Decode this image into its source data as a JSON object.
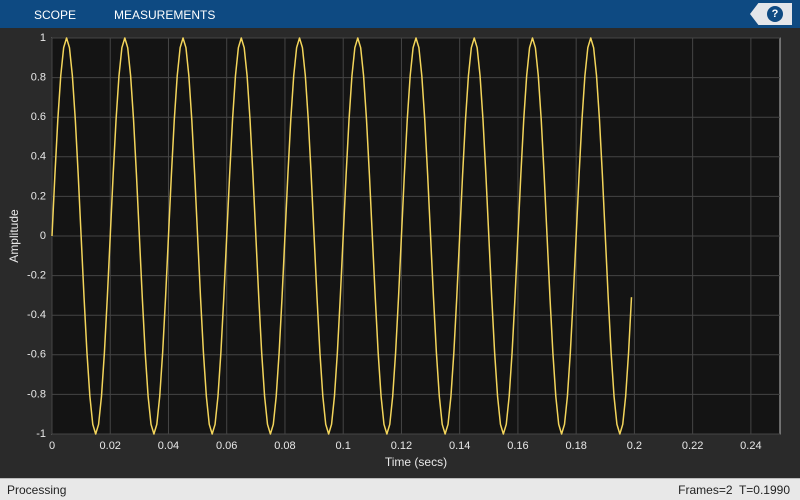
{
  "toolbar": {
    "tabs": [
      "SCOPE",
      "MEASUREMENTS"
    ],
    "help": "?"
  },
  "status": {
    "left": "Processing",
    "right": "Frames=2  T=0.1990"
  },
  "chart_data": {
    "type": "line",
    "xlabel": "Time (secs)",
    "ylabel": "Amplitude",
    "xlim": [
      0,
      0.25
    ],
    "ylim": [
      -1,
      1
    ],
    "xticks": [
      0,
      0.02,
      0.04,
      0.06,
      0.08,
      0.1,
      0.12,
      0.14,
      0.16,
      0.18,
      0.2,
      0.22,
      0.24
    ],
    "yticks": [
      -1,
      -0.8,
      -0.6,
      -0.4,
      -0.2,
      0,
      0.2,
      0.4,
      0.6,
      0.8,
      1
    ],
    "grid": true,
    "x": [
      0,
      0.001,
      0.002,
      0.003,
      0.004,
      0.005,
      0.006,
      0.007,
      0.008,
      0.009,
      0.01,
      0.011,
      0.012,
      0.013,
      0.014,
      0.015,
      0.016,
      0.017,
      0.018,
      0.019,
      0.02,
      0.021,
      0.022,
      0.023,
      0.024,
      0.025,
      0.026,
      0.027,
      0.028,
      0.029,
      0.03,
      0.031,
      0.032,
      0.033,
      0.034,
      0.035,
      0.036,
      0.037,
      0.038,
      0.039,
      0.04,
      0.041,
      0.042,
      0.043,
      0.044,
      0.045,
      0.046,
      0.047,
      0.048,
      0.049,
      0.05,
      0.051,
      0.052,
      0.053,
      0.054,
      0.055,
      0.056,
      0.057,
      0.058,
      0.059,
      0.06,
      0.061,
      0.062,
      0.063,
      0.064,
      0.065,
      0.066,
      0.067,
      0.068,
      0.069,
      0.07,
      0.071,
      0.072,
      0.073,
      0.074,
      0.075,
      0.076,
      0.077,
      0.078,
      0.079,
      0.08,
      0.081,
      0.082,
      0.083,
      0.084,
      0.085,
      0.086,
      0.087,
      0.088,
      0.089,
      0.09,
      0.091,
      0.092,
      0.093,
      0.094,
      0.095,
      0.096,
      0.097,
      0.098,
      0.099,
      0.1,
      0.101,
      0.102,
      0.103,
      0.104,
      0.105,
      0.106,
      0.107,
      0.108,
      0.109,
      0.11,
      0.111,
      0.112,
      0.113,
      0.114,
      0.115,
      0.116,
      0.117,
      0.118,
      0.119,
      0.12,
      0.121,
      0.122,
      0.123,
      0.124,
      0.125,
      0.126,
      0.127,
      0.128,
      0.129,
      0.13,
      0.131,
      0.132,
      0.133,
      0.134,
      0.135,
      0.136,
      0.137,
      0.138,
      0.139,
      0.14,
      0.141,
      0.142,
      0.143,
      0.144,
      0.145,
      0.146,
      0.147,
      0.148,
      0.149,
      0.15,
      0.151,
      0.152,
      0.153,
      0.154,
      0.155,
      0.156,
      0.157,
      0.158,
      0.159,
      0.16,
      0.161,
      0.162,
      0.163,
      0.164,
      0.165,
      0.166,
      0.167,
      0.168,
      0.169,
      0.17,
      0.171,
      0.172,
      0.173,
      0.174,
      0.175,
      0.176,
      0.177,
      0.178,
      0.179,
      0.18,
      0.181,
      0.182,
      0.183,
      0.184,
      0.185,
      0.186,
      0.187,
      0.188,
      0.189,
      0.19,
      0.191,
      0.192,
      0.193,
      0.194,
      0.195,
      0.196,
      0.197,
      0.198,
      0.199
    ],
    "series": [
      {
        "color": "#f3d55b",
        "values": [
          0,
          0.309,
          0.588,
          0.809,
          0.951,
          1,
          0.951,
          0.809,
          0.588,
          0.309,
          0,
          -0.309,
          -0.588,
          -0.809,
          -0.951,
          -1,
          -0.951,
          -0.809,
          -0.588,
          -0.309,
          0,
          0.309,
          0.588,
          0.809,
          0.951,
          1,
          0.951,
          0.809,
          0.588,
          0.309,
          0,
          -0.309,
          -0.588,
          -0.809,
          -0.951,
          -1,
          -0.951,
          -0.809,
          -0.588,
          -0.309,
          0,
          0.309,
          0.588,
          0.809,
          0.951,
          1,
          0.951,
          0.809,
          0.588,
          0.309,
          0,
          -0.309,
          -0.588,
          -0.809,
          -0.951,
          -1,
          -0.951,
          -0.809,
          -0.588,
          -0.309,
          0,
          0.309,
          0.588,
          0.809,
          0.951,
          1,
          0.951,
          0.809,
          0.588,
          0.309,
          0,
          -0.309,
          -0.588,
          -0.809,
          -0.951,
          -1,
          -0.951,
          -0.809,
          -0.588,
          -0.309,
          0,
          0.309,
          0.588,
          0.809,
          0.951,
          1,
          0.951,
          0.809,
          0.588,
          0.309,
          0,
          -0.309,
          -0.588,
          -0.809,
          -0.951,
          -1,
          -0.951,
          -0.809,
          -0.588,
          -0.309,
          0,
          0.309,
          0.588,
          0.809,
          0.951,
          1,
          0.951,
          0.809,
          0.588,
          0.309,
          0,
          -0.309,
          -0.588,
          -0.809,
          -0.951,
          -1,
          -0.951,
          -0.809,
          -0.588,
          -0.309,
          0,
          0.309,
          0.588,
          0.809,
          0.951,
          1,
          0.951,
          0.809,
          0.588,
          0.309,
          0,
          -0.309,
          -0.588,
          -0.809,
          -0.951,
          -1,
          -0.951,
          -0.809,
          -0.588,
          -0.309,
          0,
          0.309,
          0.588,
          0.809,
          0.951,
          1,
          0.951,
          0.809,
          0.588,
          0.309,
          0,
          -0.309,
          -0.588,
          -0.809,
          -0.951,
          -1,
          -0.951,
          -0.809,
          -0.588,
          -0.309,
          0,
          0.309,
          0.588,
          0.809,
          0.951,
          1,
          0.951,
          0.809,
          0.588,
          0.309,
          0,
          -0.309,
          -0.588,
          -0.809,
          -0.951,
          -1,
          -0.951,
          -0.809,
          -0.588,
          -0.309,
          0,
          0.309,
          0.588,
          0.809,
          0.951,
          1,
          0.951,
          0.809,
          0.588,
          0.309,
          0,
          -0.309,
          -0.588,
          -0.809,
          -0.951,
          -1,
          -0.951,
          -0.809,
          -0.588,
          -0.309
        ]
      }
    ]
  }
}
